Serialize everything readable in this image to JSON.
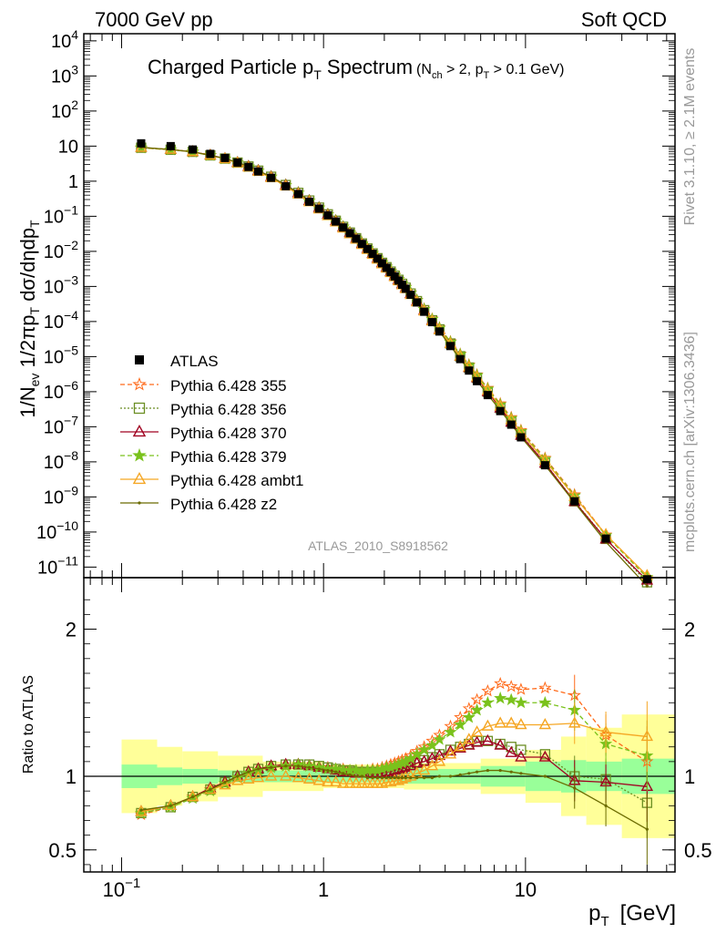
{
  "header": {
    "left": "7000 GeV pp",
    "right": "Soft QCD"
  },
  "side_labels": {
    "rivet": "Rivet 3.1.10, ≥ 2.1M events",
    "mcplots": "mcplots.cern.ch [arXiv:1306.3436]"
  },
  "chart_data": {
    "type": "line",
    "title": "Charged Particle p_T Spectrum",
    "title_main": "Charged Particle p",
    "title_sub": "T",
    "title_main2": " Spectrum",
    "title_cut": "(N",
    "title_cut_sub": "ch",
    "title_cut2": " > 2, p",
    "title_cut_sub2": "T",
    "title_cut3": " > 0.1 GeV)",
    "analysis_id": "ATLAS_2010_S8918562",
    "xlabel": "p_T [GeV]",
    "xlabel_main": "p",
    "xlabel_sub": "T",
    "xlabel_unit": "[GeV]",
    "ylabel": "1/N_ev 1/2πp_T dσ/dηdp_T",
    "ratio_ylabel": "Ratio to ATLAS",
    "xscale": "log",
    "xlim": [
      0.065,
      55
    ],
    "ylim_main": [
      5e-12,
      16000.0
    ],
    "ylim_ratio": [
      0.35,
      2.35
    ],
    "x_tick_labels": [
      "10⁻¹",
      "1",
      "10"
    ],
    "ratio_tick_labels": [
      "0.5",
      "1",
      "2"
    ],
    "x": [
      0.125,
      0.175,
      0.225,
      0.275,
      0.325,
      0.375,
      0.425,
      0.475,
      0.55,
      0.65,
      0.75,
      0.85,
      0.95,
      1.05,
      1.15,
      1.25,
      1.35,
      1.45,
      1.55,
      1.65,
      1.75,
      1.85,
      1.95,
      2.05,
      2.15,
      2.25,
      2.35,
      2.45,
      2.55,
      2.7,
      2.9,
      3.15,
      3.45,
      3.75,
      4.25,
      4.75,
      5.25,
      5.75,
      6.5,
      7.5,
      8.5,
      9.5,
      12.5,
      17.5,
      25,
      40
    ],
    "data_values": [
      12.0,
      10.0,
      8.0,
      6.0,
      4.6,
      3.4,
      2.55,
      1.9,
      1.25,
      0.72,
      0.43,
      0.26,
      0.165,
      0.107,
      0.071,
      0.048,
      0.033,
      0.023,
      0.0163,
      0.0117,
      0.0085,
      0.0062,
      0.00458,
      0.0034,
      0.00255,
      0.00193,
      0.00147,
      0.00112,
      0.00086,
      0.00058,
      0.00035,
      0.00019,
      9.6e-05,
      5.2e-05,
      2e-05,
      8.5e-06,
      4e-06,
      2e-06,
      8e-07,
      2.8e-07,
      1.15e-07,
      5e-08,
      8e-09,
      7.5e-10,
      6.5e-11,
      4.5e-12
    ],
    "band_bins": [
      {
        "lo": 0.1,
        "hi": 0.15,
        "stat": 0.08,
        "tot": 0.25
      },
      {
        "lo": 0.15,
        "hi": 0.2,
        "stat": 0.06,
        "tot": 0.2
      },
      {
        "lo": 0.2,
        "hi": 0.3,
        "stat": 0.05,
        "tot": 0.17
      },
      {
        "lo": 0.3,
        "hi": 0.5,
        "stat": 0.04,
        "tot": 0.14
      },
      {
        "lo": 0.5,
        "hi": 1.0,
        "stat": 0.04,
        "tot": 0.1
      },
      {
        "lo": 1.0,
        "hi": 2.5,
        "stat": 0.04,
        "tot": 0.08
      },
      {
        "lo": 2.5,
        "hi": 6.0,
        "stat": 0.05,
        "tot": 0.09
      },
      {
        "lo": 6.0,
        "hi": 10.0,
        "stat": 0.07,
        "tot": 0.12
      },
      {
        "lo": 10.0,
        "hi": 15.0,
        "stat": 0.1,
        "tot": 0.18
      },
      {
        "lo": 15.0,
        "hi": 20.0,
        "stat": 0.11,
        "tot": 0.27
      },
      {
        "lo": 20.0,
        "hi": 30.0,
        "stat": 0.1,
        "tot": 0.33
      },
      {
        "lo": 30.0,
        "hi": 55.0,
        "stat": 0.12,
        "tot": 0.42
      }
    ],
    "series": [
      {
        "name": "ATLAS",
        "color": "#000000",
        "marker": "square",
        "dash": "",
        "ratio": []
      },
      {
        "name": "Pythia 6.428 355",
        "color": "#ff6a1a",
        "marker": "star-open",
        "dash": "5,3",
        "ratio": [
          0.74,
          0.79,
          0.86,
          0.91,
          0.95,
          0.99,
          1.02,
          1.04,
          1.06,
          1.07,
          1.08,
          1.07,
          1.06,
          1.06,
          1.05,
          1.05,
          1.04,
          1.04,
          1.04,
          1.04,
          1.05,
          1.05,
          1.06,
          1.07,
          1.08,
          1.09,
          1.1,
          1.11,
          1.12,
          1.14,
          1.17,
          1.2,
          1.24,
          1.28,
          1.34,
          1.4,
          1.46,
          1.52,
          1.58,
          1.63,
          1.61,
          1.59,
          1.6,
          1.55,
          1.28,
          1.1
        ]
      },
      {
        "name": "Pythia 6.428 356",
        "color": "#6b8e23",
        "marker": "square-open",
        "dash": "2,2",
        "ratio": [
          0.75,
          0.79,
          0.86,
          0.91,
          0.96,
          1.0,
          1.03,
          1.05,
          1.07,
          1.08,
          1.08,
          1.08,
          1.07,
          1.06,
          1.05,
          1.04,
          1.04,
          1.03,
          1.03,
          1.03,
          1.03,
          1.03,
          1.03,
          1.04,
          1.04,
          1.05,
          1.05,
          1.06,
          1.07,
          1.08,
          1.09,
          1.11,
          1.13,
          1.15,
          1.18,
          1.2,
          1.22,
          1.24,
          1.24,
          1.22,
          1.2,
          1.18,
          1.15,
          1.0,
          0.98,
          0.82
        ]
      },
      {
        "name": "Pythia 6.428 370",
        "color": "#a00020",
        "marker": "triangle-open",
        "dash": "",
        "ratio": [
          0.76,
          0.8,
          0.86,
          0.92,
          0.96,
          1.0,
          1.03,
          1.05,
          1.07,
          1.08,
          1.08,
          1.07,
          1.06,
          1.05,
          1.04,
          1.03,
          1.03,
          1.02,
          1.02,
          1.02,
          1.02,
          1.02,
          1.02,
          1.03,
          1.03,
          1.04,
          1.05,
          1.05,
          1.06,
          1.07,
          1.09,
          1.1,
          1.12,
          1.14,
          1.17,
          1.19,
          1.21,
          1.23,
          1.24,
          1.21,
          1.16,
          1.13,
          1.13,
          0.97,
          0.96,
          0.93
        ]
      },
      {
        "name": "Pythia 6.428 379",
        "color": "#7ac21c",
        "marker": "star",
        "dash": "5,3",
        "ratio": [
          0.75,
          0.79,
          0.85,
          0.9,
          0.95,
          0.99,
          1.02,
          1.04,
          1.06,
          1.07,
          1.08,
          1.07,
          1.06,
          1.05,
          1.05,
          1.04,
          1.04,
          1.04,
          1.03,
          1.04,
          1.04,
          1.04,
          1.05,
          1.06,
          1.06,
          1.07,
          1.08,
          1.09,
          1.1,
          1.12,
          1.15,
          1.18,
          1.21,
          1.25,
          1.3,
          1.35,
          1.4,
          1.45,
          1.5,
          1.53,
          1.52,
          1.5,
          1.5,
          1.45,
          1.22,
          1.14
        ]
      },
      {
        "name": "Pythia 6.428 ambt1",
        "color": "#f5a623",
        "marker": "triangle-open",
        "dash": "",
        "ratio": [
          0.76,
          0.8,
          0.86,
          0.91,
          0.94,
          0.97,
          0.98,
          0.99,
          1.0,
          1.0,
          0.99,
          0.98,
          0.97,
          0.96,
          0.96,
          0.95,
          0.95,
          0.95,
          0.95,
          0.95,
          0.95,
          0.95,
          0.95,
          0.96,
          0.96,
          0.97,
          0.97,
          0.98,
          0.99,
          1.0,
          1.02,
          1.04,
          1.07,
          1.1,
          1.15,
          1.2,
          1.25,
          1.3,
          1.34,
          1.36,
          1.36,
          1.35,
          1.35,
          1.36,
          1.3,
          1.27
        ]
      },
      {
        "name": "Pythia 6.428 z2",
        "color": "#6b6b00",
        "marker": "dot",
        "dash": "",
        "ratio": [
          0.77,
          0.8,
          0.86,
          0.91,
          0.96,
          1.0,
          1.03,
          1.05,
          1.06,
          1.07,
          1.07,
          1.06,
          1.05,
          1.04,
          1.03,
          1.02,
          1.01,
          1.0,
          1.0,
          0.99,
          0.99,
          0.99,
          0.99,
          0.99,
          0.99,
          0.99,
          0.99,
          0.99,
          0.99,
          0.99,
          0.99,
          0.99,
          0.99,
          1.0,
          1.0,
          1.01,
          1.02,
          1.03,
          1.04,
          1.04,
          1.03,
          1.02,
          1.0,
          0.92,
          0.8,
          0.64
        ]
      }
    ]
  }
}
